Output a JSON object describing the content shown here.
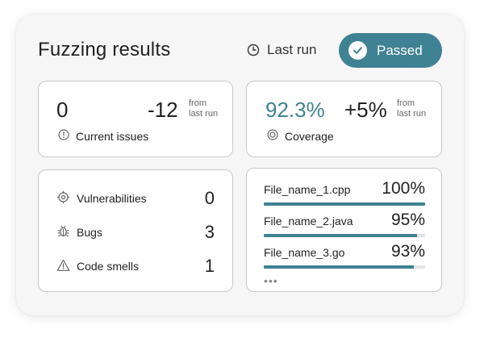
{
  "header": {
    "title": "Fuzzing results",
    "last_run_label": "Last run",
    "status_label": "Passed"
  },
  "issues_card": {
    "value": "0",
    "label": "Current issues",
    "delta": "-12",
    "delta_note_line1": "from",
    "delta_note_line2": "last run"
  },
  "coverage_card": {
    "value": "92.3%",
    "label": "Coverage",
    "delta": "+5%",
    "delta_note_line1": "from",
    "delta_note_line2": "last run"
  },
  "counts": [
    {
      "label": "Vulnerabilities",
      "value": "0",
      "icon": "vulnerability-icon"
    },
    {
      "label": "Bugs",
      "value": "3",
      "icon": "bug-icon"
    },
    {
      "label": "Code smells",
      "value": "1",
      "icon": "warning-icon"
    }
  ],
  "files": [
    {
      "name": "File_name_1.cpp",
      "percent_label": "100%",
      "coverage": 100
    },
    {
      "name": "File_name_2.java",
      "percent_label": "95%",
      "coverage": 95
    },
    {
      "name": "File_name_3.go",
      "percent_label": "93%",
      "coverage": 93
    }
  ],
  "more_label": "•••",
  "colors": {
    "accent": "#3f8293",
    "bar_track": "#e4e4e4"
  }
}
